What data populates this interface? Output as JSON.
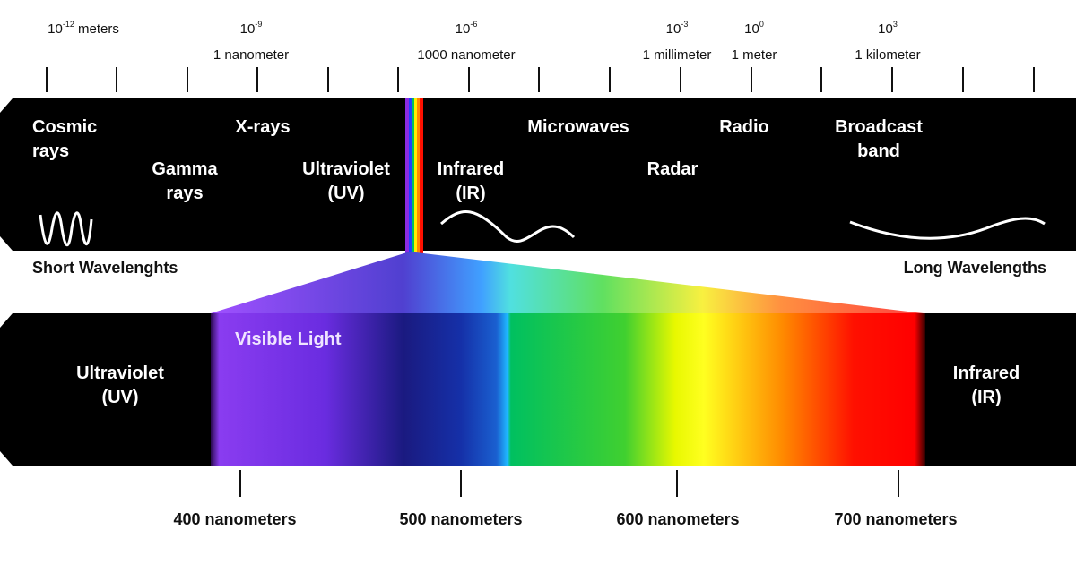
{
  "scale": [
    {
      "base": "10",
      "exponent": "-12",
      "unit": "meters"
    },
    {
      "base": "10",
      "exponent": "-9",
      "unit": "1 nanometer"
    },
    {
      "base": "10",
      "exponent": "-6",
      "unit": "1000 nanometer"
    },
    {
      "base": "10",
      "exponent": "-3",
      "unit": "1 millimeter"
    },
    {
      "base": "10",
      "exponent": "0",
      "unit": "1 meter"
    },
    {
      "base": "10",
      "exponent": "3",
      "unit": "1 kilometer"
    }
  ],
  "bands": [
    {
      "lines": [
        "Cosmic",
        "rays"
      ]
    },
    {
      "lines": [
        "Gamma",
        "rays"
      ]
    },
    {
      "lines": [
        "X-rays"
      ]
    },
    {
      "lines": [
        "Ultraviolet",
        "(UV)"
      ]
    },
    {
      "lines": [
        "Infrared",
        "(IR)"
      ]
    },
    {
      "lines": [
        "Microwaves"
      ]
    },
    {
      "lines": [
        "Radar"
      ]
    },
    {
      "lines": [
        "Radio"
      ]
    },
    {
      "lines": [
        "Broadcast",
        "band"
      ]
    }
  ],
  "short_label": "Short Wavelenghts",
  "long_label": "Long Wavelengths",
  "visible": {
    "title": "Visible Light",
    "left": [
      "Ultraviolet",
      "(UV)"
    ],
    "right": [
      "Infrared",
      "(IR)"
    ]
  },
  "nm_labels": [
    "400 nanometers",
    "500 nanometers",
    "600 nanometers",
    "700 nanometers"
  ]
}
